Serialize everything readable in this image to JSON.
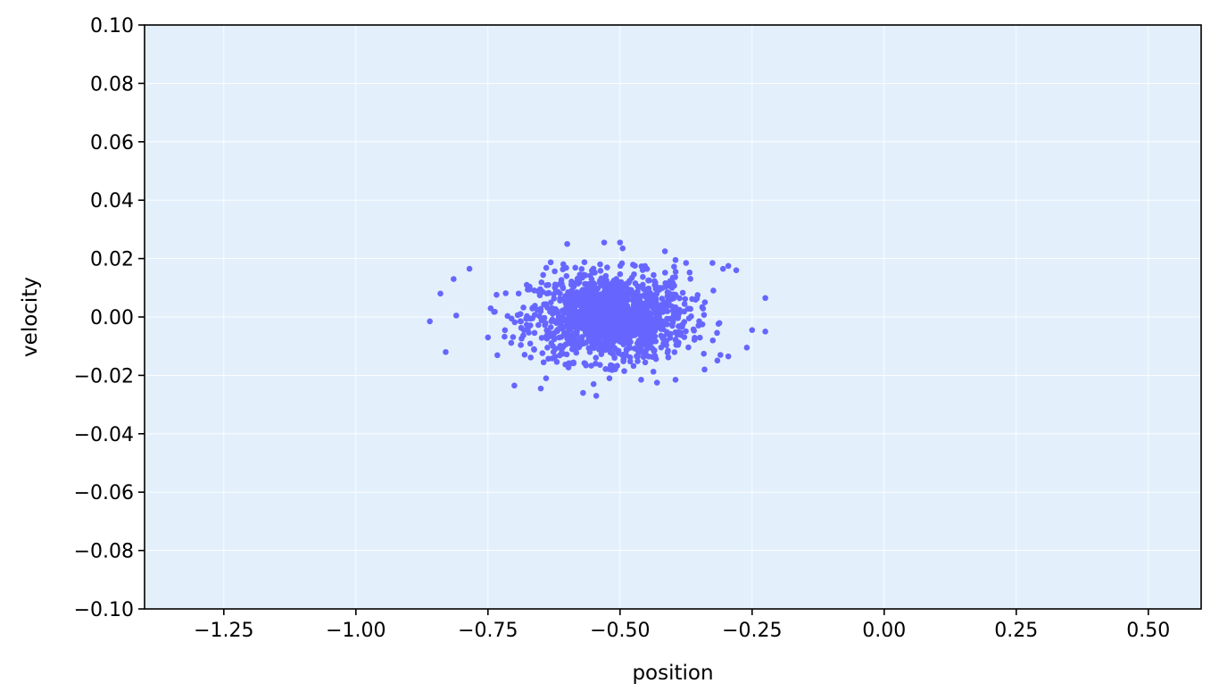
{
  "chart_data": {
    "type": "scatter",
    "title": "",
    "xlabel": "position",
    "ylabel": "velocity",
    "xlim": [
      -1.4,
      0.6
    ],
    "ylim": [
      -0.1,
      0.1
    ],
    "grid": true,
    "x_ticks": [
      -1.25,
      -1.0,
      -0.75,
      -0.5,
      -0.25,
      0.0,
      0.25,
      0.5
    ],
    "y_ticks": [
      -0.1,
      -0.08,
      -0.06,
      -0.04,
      -0.02,
      0.0,
      0.02,
      0.04,
      0.06,
      0.08,
      0.1
    ],
    "x_tick_labels": [
      "−1.25",
      "−1.00",
      "−0.75",
      "−0.50",
      "−0.25",
      "0.00",
      "0.25",
      "0.50"
    ],
    "y_tick_labels": [
      "−0.10",
      "−0.08",
      "−0.06",
      "−0.04",
      "−0.02",
      "0.00",
      "0.02",
      "0.04",
      "0.06",
      "0.08",
      "0.10"
    ],
    "colors": {
      "background": "#e3f0fc",
      "points": "#6666ff",
      "grid": "#ffffff"
    },
    "series": [
      {
        "points": [
          [
            -0.86,
            -0.0015
          ],
          [
            -0.84,
            0.008
          ],
          [
            -0.83,
            -0.012
          ],
          [
            -0.815,
            0.013
          ],
          [
            -0.81,
            0.0005
          ],
          [
            -0.785,
            0.0165
          ],
          [
            -0.6,
            0.025
          ],
          [
            -0.53,
            0.0255
          ],
          [
            -0.5,
            0.0255
          ],
          [
            -0.495,
            0.0235
          ],
          [
            -0.415,
            0.0225
          ],
          [
            -0.395,
            0.0195
          ],
          [
            -0.375,
            0.0185
          ],
          [
            -0.325,
            0.0185
          ],
          [
            -0.305,
            0.0165
          ],
          [
            -0.295,
            0.0175
          ],
          [
            -0.28,
            0.016
          ],
          [
            -0.225,
            0.0065
          ],
          [
            -0.25,
            -0.0045
          ],
          [
            -0.225,
            -0.005
          ],
          [
            -0.26,
            -0.0105
          ],
          [
            -0.295,
            -0.0135
          ],
          [
            -0.31,
            -0.013
          ],
          [
            -0.34,
            -0.018
          ],
          [
            -0.395,
            -0.0215
          ],
          [
            -0.43,
            -0.0225
          ],
          [
            -0.46,
            -0.0215
          ],
          [
            -0.52,
            -0.021
          ],
          [
            -0.55,
            -0.023
          ],
          [
            -0.57,
            -0.026
          ],
          [
            -0.545,
            -0.027
          ],
          [
            -0.65,
            -0.0245
          ],
          [
            -0.64,
            -0.021
          ],
          [
            -0.7,
            -0.0235
          ],
          [
            -0.75,
            -0.007
          ]
        ],
        "cluster": {
          "center": [
            -0.52,
            0.0
          ],
          "spread": [
            0.075,
            0.0075
          ],
          "count": 1400
        }
      }
    ]
  }
}
